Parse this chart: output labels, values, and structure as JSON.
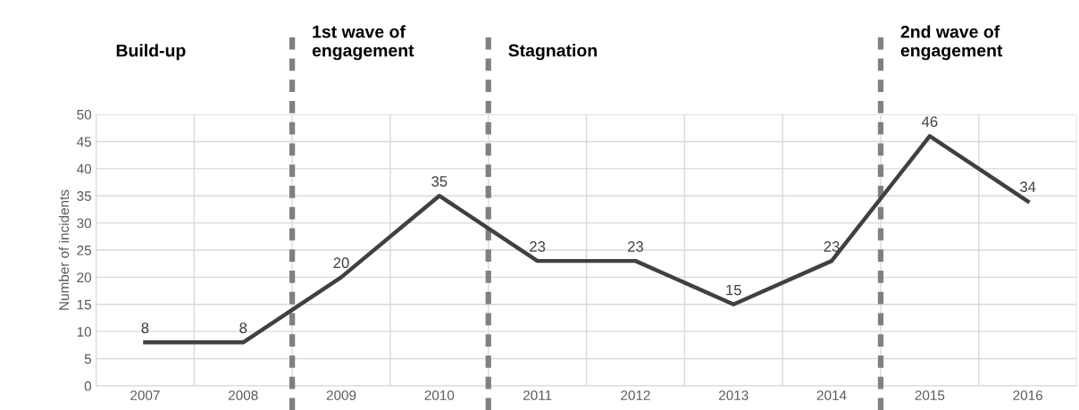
{
  "chart_data": {
    "type": "line",
    "ylabel": "Number of incidents",
    "categories": [
      "2007",
      "2008",
      "2009",
      "2010",
      "2011",
      "2012",
      "2013",
      "2014",
      "2015",
      "2016"
    ],
    "series": [
      {
        "color": "#404040",
        "values": [
          8,
          8,
          20,
          35,
          23,
          23,
          15,
          23,
          46,
          34
        ]
      }
    ],
    "ylim": [
      0,
      50
    ],
    "yticks": [
      0,
      5,
      10,
      15,
      20,
      25,
      30,
      35,
      40,
      45,
      50
    ],
    "grid": true,
    "data_labels": true,
    "marker": "none",
    "line_style": "solid",
    "annotations": [
      "Build-up",
      "1st wave of\nengagement",
      "Stagnation",
      "2nd wave of\nengagement"
    ]
  }
}
